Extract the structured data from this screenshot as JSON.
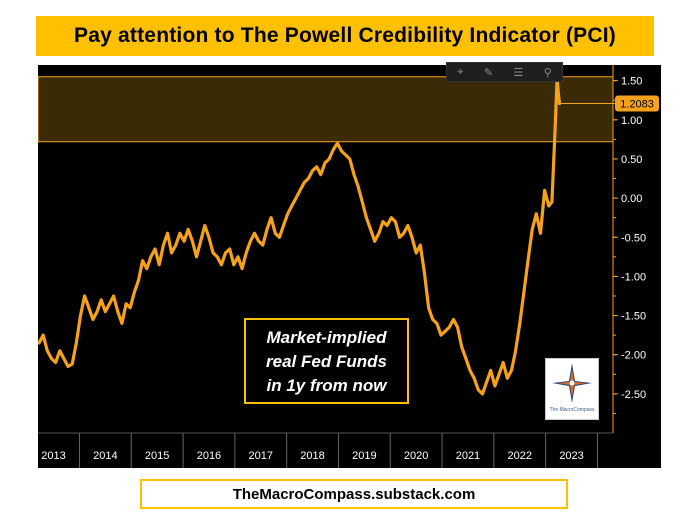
{
  "title": "Pay attention to The Powell Credibility Indicator (PCI)",
  "footer": "TheMacroCompass.substack.com",
  "toolbar": {
    "icons": [
      "crosshair-icon",
      "draw-icon",
      "table-icon",
      "zoom-icon"
    ]
  },
  "logo": {
    "caption": "The MacroCompass"
  },
  "colors": {
    "line": "#f7a21b",
    "banner": "#ffc000",
    "band_fill": "#3a2a05",
    "band_stroke": "#f7a21b",
    "background": "#000000"
  },
  "chart_data": {
    "type": "line",
    "title": "Pay attention to The Powell Credibility Indicator (PCI)",
    "xlabel": "",
    "ylabel": "",
    "x_ticks": [
      "2013",
      "2014",
      "2015",
      "2016",
      "2017",
      "2018",
      "2019",
      "2020",
      "2021",
      "2022",
      "2023"
    ],
    "y_ticks": [
      "1.50",
      "1.00",
      "0.50",
      "0.00",
      "-0.50",
      "-1.00",
      "-1.50",
      "-2.00",
      "-2.50"
    ],
    "ylim": [
      -3.0,
      1.7
    ],
    "xlim": [
      2012.7,
      2023.8
    ],
    "last_value_label": "1.2083",
    "last_value": 1.2083,
    "shaded_band": [
      0.72,
      1.55
    ],
    "annotation": [
      "Market-implied",
      "real Fed Funds",
      "in 1y from now"
    ],
    "series": [
      {
        "points": [
          [
            2012.72,
            -1.85
          ],
          [
            2012.8,
            -1.75
          ],
          [
            2012.88,
            -1.95
          ],
          [
            2012.96,
            -2.05
          ],
          [
            2013.04,
            -2.1
          ],
          [
            2013.12,
            -1.95
          ],
          [
            2013.2,
            -2.05
          ],
          [
            2013.28,
            -2.15
          ],
          [
            2013.36,
            -2.12
          ],
          [
            2013.44,
            -1.85
          ],
          [
            2013.52,
            -1.5
          ],
          [
            2013.6,
            -1.25
          ],
          [
            2013.68,
            -1.4
          ],
          [
            2013.76,
            -1.55
          ],
          [
            2013.84,
            -1.45
          ],
          [
            2013.92,
            -1.3
          ],
          [
            2014.0,
            -1.45
          ],
          [
            2014.08,
            -1.35
          ],
          [
            2014.16,
            -1.25
          ],
          [
            2014.24,
            -1.45
          ],
          [
            2014.32,
            -1.6
          ],
          [
            2014.4,
            -1.35
          ],
          [
            2014.48,
            -1.4
          ],
          [
            2014.56,
            -1.2
          ],
          [
            2014.64,
            -1.05
          ],
          [
            2014.72,
            -0.8
          ],
          [
            2014.8,
            -0.9
          ],
          [
            2014.88,
            -0.75
          ],
          [
            2014.96,
            -0.65
          ],
          [
            2015.04,
            -0.85
          ],
          [
            2015.12,
            -0.6
          ],
          [
            2015.2,
            -0.45
          ],
          [
            2015.28,
            -0.7
          ],
          [
            2015.36,
            -0.6
          ],
          [
            2015.44,
            -0.45
          ],
          [
            2015.52,
            -0.55
          ],
          [
            2015.6,
            -0.4
          ],
          [
            2015.68,
            -0.55
          ],
          [
            2015.76,
            -0.75
          ],
          [
            2015.84,
            -0.55
          ],
          [
            2015.92,
            -0.35
          ],
          [
            2016.0,
            -0.5
          ],
          [
            2016.08,
            -0.7
          ],
          [
            2016.16,
            -0.75
          ],
          [
            2016.24,
            -0.85
          ],
          [
            2016.32,
            -0.7
          ],
          [
            2016.4,
            -0.65
          ],
          [
            2016.48,
            -0.85
          ],
          [
            2016.56,
            -0.75
          ],
          [
            2016.64,
            -0.9
          ],
          [
            2016.72,
            -0.7
          ],
          [
            2016.8,
            -0.55
          ],
          [
            2016.88,
            -0.45
          ],
          [
            2016.96,
            -0.55
          ],
          [
            2017.04,
            -0.6
          ],
          [
            2017.12,
            -0.4
          ],
          [
            2017.2,
            -0.25
          ],
          [
            2017.28,
            -0.45
          ],
          [
            2017.36,
            -0.5
          ],
          [
            2017.44,
            -0.35
          ],
          [
            2017.52,
            -0.2
          ],
          [
            2017.6,
            -0.1
          ],
          [
            2017.68,
            0.0
          ],
          [
            2017.76,
            0.1
          ],
          [
            2017.84,
            0.2
          ],
          [
            2017.92,
            0.25
          ],
          [
            2018.0,
            0.35
          ],
          [
            2018.08,
            0.4
          ],
          [
            2018.16,
            0.3
          ],
          [
            2018.24,
            0.45
          ],
          [
            2018.32,
            0.5
          ],
          [
            2018.4,
            0.62
          ],
          [
            2018.48,
            0.7
          ],
          [
            2018.56,
            0.6
          ],
          [
            2018.64,
            0.55
          ],
          [
            2018.72,
            0.5
          ],
          [
            2018.8,
            0.3
          ],
          [
            2018.88,
            0.15
          ],
          [
            2018.96,
            -0.05
          ],
          [
            2019.04,
            -0.25
          ],
          [
            2019.12,
            -0.4
          ],
          [
            2019.2,
            -0.55
          ],
          [
            2019.28,
            -0.45
          ],
          [
            2019.36,
            -0.3
          ],
          [
            2019.44,
            -0.35
          ],
          [
            2019.52,
            -0.25
          ],
          [
            2019.6,
            -0.3
          ],
          [
            2019.68,
            -0.5
          ],
          [
            2019.76,
            -0.45
          ],
          [
            2019.84,
            -0.35
          ],
          [
            2019.92,
            -0.5
          ],
          [
            2020.0,
            -0.7
          ],
          [
            2020.08,
            -0.6
          ],
          [
            2020.16,
            -0.95
          ],
          [
            2020.24,
            -1.4
          ],
          [
            2020.32,
            -1.55
          ],
          [
            2020.4,
            -1.6
          ],
          [
            2020.48,
            -1.75
          ],
          [
            2020.56,
            -1.7
          ],
          [
            2020.64,
            -1.65
          ],
          [
            2020.72,
            -1.55
          ],
          [
            2020.8,
            -1.65
          ],
          [
            2020.88,
            -1.9
          ],
          [
            2020.96,
            -2.05
          ],
          [
            2021.04,
            -2.2
          ],
          [
            2021.12,
            -2.3
          ],
          [
            2021.2,
            -2.45
          ],
          [
            2021.28,
            -2.5
          ],
          [
            2021.36,
            -2.35
          ],
          [
            2021.44,
            -2.2
          ],
          [
            2021.52,
            -2.4
          ],
          [
            2021.6,
            -2.25
          ],
          [
            2021.68,
            -2.1
          ],
          [
            2021.76,
            -2.3
          ],
          [
            2021.84,
            -2.2
          ],
          [
            2021.92,
            -1.95
          ],
          [
            2022.0,
            -1.6
          ],
          [
            2022.08,
            -1.2
          ],
          [
            2022.16,
            -0.8
          ],
          [
            2022.24,
            -0.4
          ],
          [
            2022.32,
            -0.2
          ],
          [
            2022.4,
            -0.45
          ],
          [
            2022.48,
            0.1
          ],
          [
            2022.56,
            -0.1
          ],
          [
            2022.62,
            -0.05
          ],
          [
            2022.68,
            0.85
          ],
          [
            2022.72,
            1.52
          ],
          [
            2022.75,
            1.3
          ],
          [
            2022.77,
            1.2083
          ]
        ]
      }
    ]
  }
}
